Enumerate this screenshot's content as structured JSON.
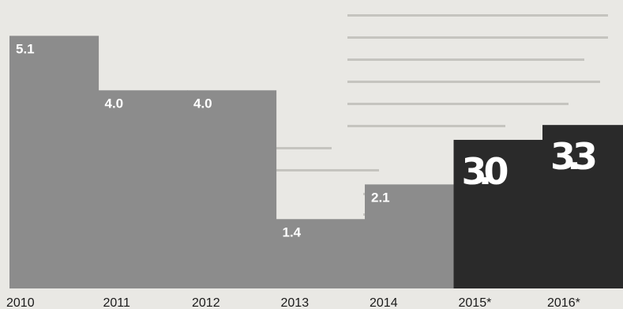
{
  "chart_data": {
    "type": "bar",
    "categories": [
      "2010",
      "2011",
      "2012",
      "2013",
      "2014",
      "2015*",
      "2016*"
    ],
    "values": [
      5.1,
      4.0,
      4.0,
      1.4,
      2.1,
      3.0,
      3.3
    ],
    "value_labels": [
      "5.1",
      "4.0",
      "4.0",
      "1.4",
      "2.1",
      "3.0",
      "3.3"
    ],
    "ylim": [
      0,
      5.6
    ],
    "grid": false,
    "colors": {
      "historical": "#8c8c8c",
      "forecast": "#2a2a2a",
      "label": "#ffffff",
      "tick": "#1a1a1a"
    }
  }
}
